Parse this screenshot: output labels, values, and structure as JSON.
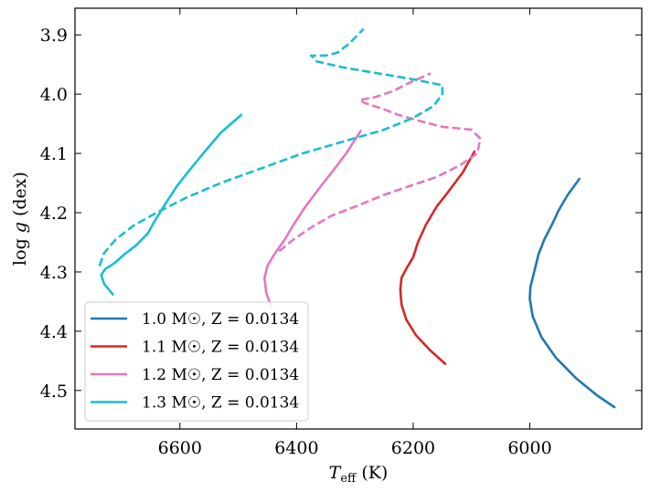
{
  "chart_data": {
    "type": "line",
    "title": "",
    "xlabel": "T_eff (K)",
    "ylabel": "log g (dex)",
    "x_inverted": true,
    "y_inverted": true,
    "xlim": [
      6780,
      5808
    ],
    "ylim": [
      4.565,
      3.855
    ],
    "xticks": [
      6600,
      6400,
      6200,
      6000
    ],
    "xtick_labels": [
      "6600",
      "6400",
      "6200",
      "6000"
    ],
    "yticks": [
      3.9,
      4.0,
      4.1,
      4.2,
      4.3,
      4.4,
      4.5
    ],
    "ytick_labels": [
      "3.9",
      "4.0",
      "4.1",
      "4.2",
      "4.3",
      "4.4",
      "4.5"
    ],
    "legend_position": "lower-left",
    "grid": false,
    "series": [
      {
        "name": "1.0 M☉, Z = 0.0134",
        "color": "#1f77b4",
        "segments": [
          {
            "style": "solid",
            "points": [
              [
                5855,
                4.528
              ],
              [
                5885,
                4.508
              ],
              [
                5920,
                4.48
              ],
              [
                5955,
                4.445
              ],
              [
                5980,
                4.41
              ],
              [
                5995,
                4.375
              ],
              [
                6000,
                4.345
              ],
              [
                5999,
                4.325
              ],
              [
                5995,
                4.31
              ],
              [
                5990,
                4.29
              ],
              [
                5985,
                4.27
              ],
              [
                5975,
                4.245
              ],
              [
                5962,
                4.22
              ],
              [
                5950,
                4.195
              ],
              [
                5935,
                4.17
              ],
              [
                5915,
                4.143
              ]
            ]
          }
        ]
      },
      {
        "name": "1.1 M☉, Z = 0.0134",
        "color": "#d62728",
        "segments": [
          {
            "style": "solid",
            "points": [
              [
                6145,
                4.455
              ],
              [
                6170,
                4.433
              ],
              [
                6195,
                4.407
              ],
              [
                6212,
                4.38
              ],
              [
                6220,
                4.355
              ],
              [
                6222,
                4.33
              ],
              [
                6220,
                4.31
              ],
              [
                6212,
                4.295
              ],
              [
                6200,
                4.275
              ],
              [
                6192,
                4.25
              ],
              [
                6178,
                4.22
              ],
              [
                6160,
                4.19
              ],
              [
                6140,
                4.165
              ],
              [
                6115,
                4.132
              ],
              [
                6095,
                4.097
              ]
            ]
          }
        ]
      },
      {
        "name": "1.2 M☉, Z = 0.0134",
        "color": "#e377c2",
        "segments": [
          {
            "style": "solid",
            "points": [
              [
                6443,
                4.36
              ],
              [
                6452,
                4.335
              ],
              [
                6455,
                4.31
              ],
              [
                6450,
                4.29
              ],
              [
                6438,
                4.27
              ],
              [
                6420,
                4.245
              ],
              [
                6405,
                4.22
              ],
              [
                6385,
                4.19
              ],
              [
                6362,
                4.16
              ],
              [
                6338,
                4.13
              ],
              [
                6315,
                4.1
              ],
              [
                6290,
                4.062
              ]
            ]
          },
          {
            "style": "dashed",
            "points": [
              [
                6430,
                4.265
              ],
              [
                6405,
                4.245
              ],
              [
                6375,
                4.225
              ],
              [
                6340,
                4.205
              ],
              [
                6300,
                4.19
              ],
              [
                6250,
                4.17
              ],
              [
                6200,
                4.153
              ],
              [
                6160,
                4.14
              ],
              [
                6120,
                4.12
              ],
              [
                6090,
                4.1
              ],
              [
                6085,
                4.075
              ],
              [
                6100,
                4.06
              ],
              [
                6150,
                4.055
              ],
              [
                6190,
                4.045
              ],
              [
                6225,
                4.035
              ],
              [
                6252,
                4.025
              ],
              [
                6283,
                4.015
              ],
              [
                6292,
                4.01
              ],
              [
                6265,
                4.005
              ],
              [
                6235,
                3.995
              ],
              [
                6205,
                3.98
              ],
              [
                6170,
                3.965
              ]
            ]
          }
        ]
      },
      {
        "name": "1.3 M☉, Z = 0.0134",
        "color": "#17becf",
        "segments": [
          {
            "style": "solid",
            "points": [
              [
                6715,
                4.338
              ],
              [
                6730,
                4.32
              ],
              [
                6735,
                4.305
              ],
              [
                6728,
                4.295
              ],
              [
                6712,
                4.285
              ],
              [
                6695,
                4.27
              ],
              [
                6675,
                4.255
              ],
              [
                6655,
                4.235
              ],
              [
                6642,
                4.212
              ],
              [
                6625,
                4.185
              ],
              [
                6605,
                4.155
              ],
              [
                6585,
                4.13
              ],
              [
                6560,
                4.1
              ],
              [
                6530,
                4.065
              ],
              [
                6495,
                4.035
              ]
            ]
          },
          {
            "style": "dashed",
            "points": [
              [
                6738,
                4.29
              ],
              [
                6730,
                4.268
              ],
              [
                6710,
                4.245
              ],
              [
                6680,
                4.222
              ],
              [
                6640,
                4.2
              ],
              [
                6590,
                4.175
              ],
              [
                6530,
                4.15
              ],
              [
                6460,
                4.125
              ],
              [
                6390,
                4.1
              ],
              [
                6320,
                4.08
              ],
              [
                6250,
                4.06
              ],
              [
                6200,
                4.04
              ],
              [
                6165,
                4.02
              ],
              [
                6150,
                4.0
              ],
              [
                6150,
                3.985
              ],
              [
                6200,
                3.975
              ],
              [
                6260,
                3.965
              ],
              [
                6320,
                3.955
              ],
              [
                6365,
                3.945
              ],
              [
                6375,
                3.935
              ],
              [
                6350,
                3.935
              ],
              [
                6330,
                3.93
              ],
              [
                6310,
                3.915
              ],
              [
                6285,
                3.89
              ]
            ]
          }
        ]
      }
    ],
    "legend": [
      {
        "label": "1.0 M☉, Z = 0.0134",
        "color": "#1f77b4"
      },
      {
        "label": "1.1 M☉, Z = 0.0134",
        "color": "#d62728"
      },
      {
        "label": "1.2 M☉, Z = 0.0134",
        "color": "#e377c2"
      },
      {
        "label": "1.3 M☉, Z = 0.0134",
        "color": "#17becf"
      }
    ]
  }
}
